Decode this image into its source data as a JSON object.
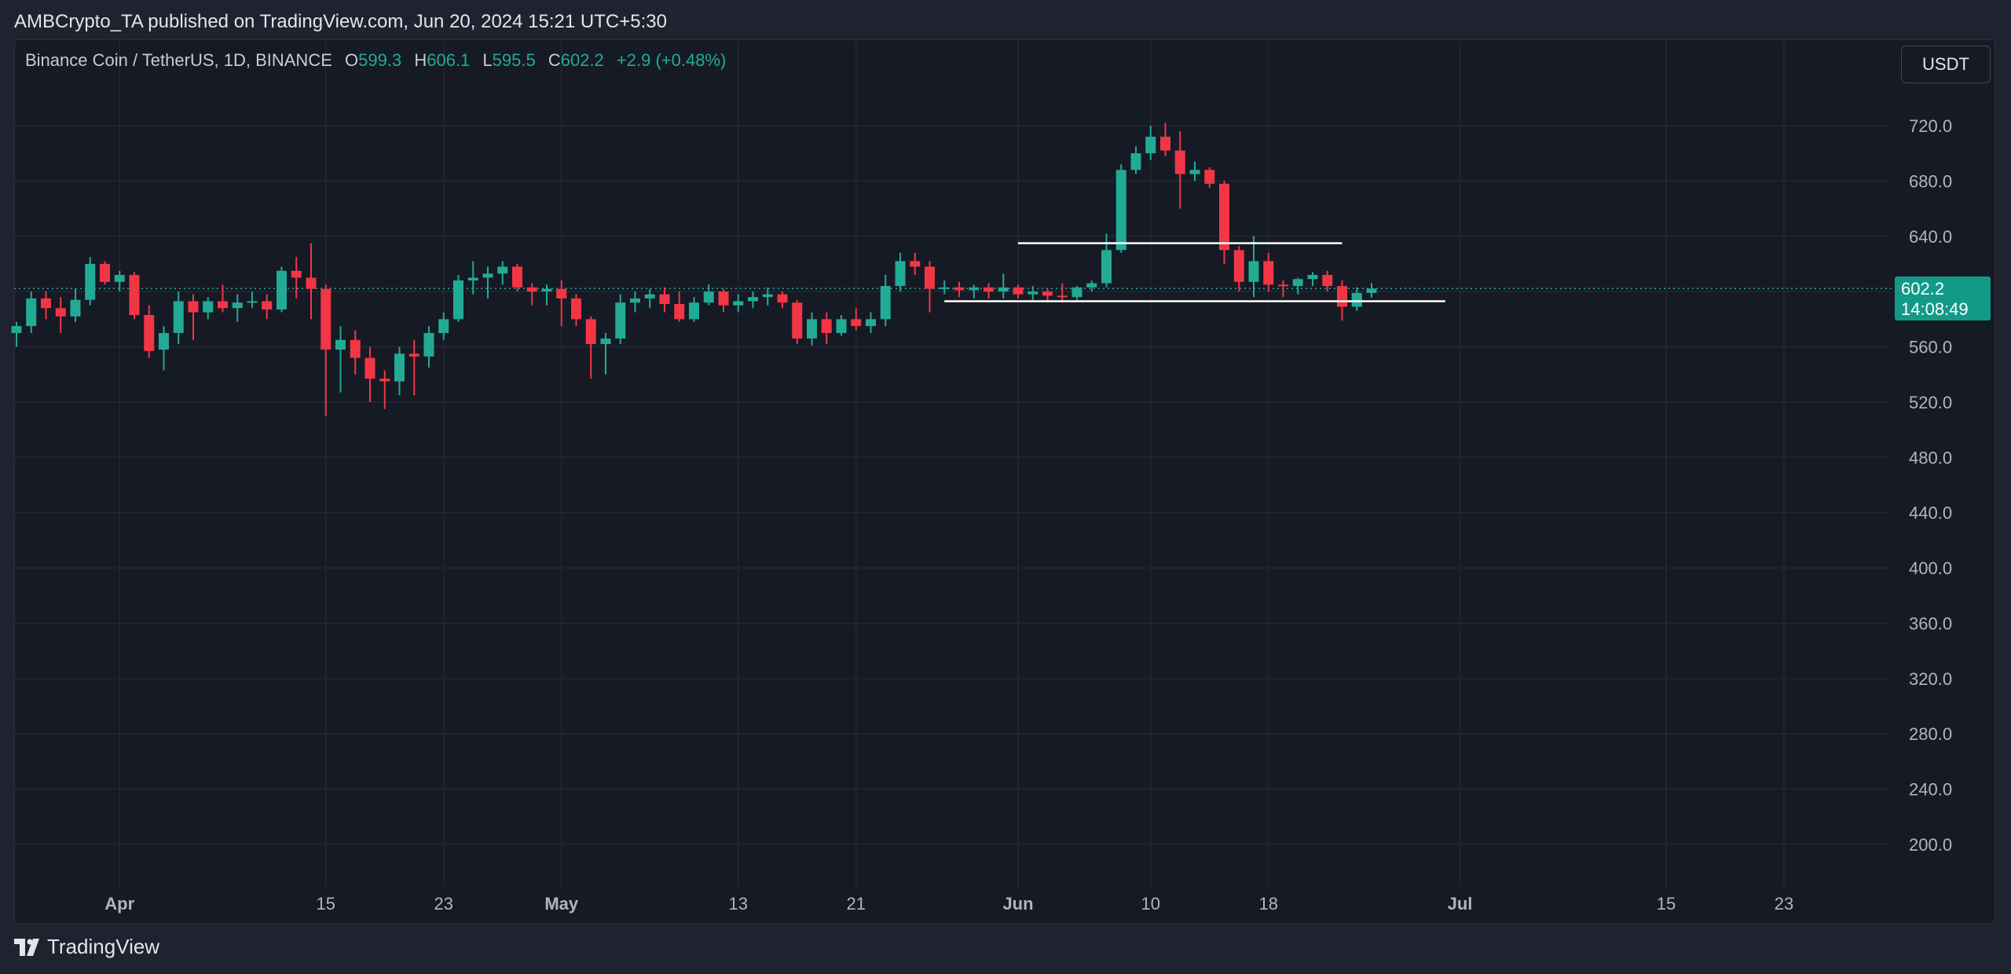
{
  "header": {
    "published": "AMBCrypto_TA published on TradingView.com, Jun 20, 2024 15:21 UTC+5:30"
  },
  "symbol": {
    "name": "Binance Coin / TetherUS, 1D, BINANCE",
    "o_label": "O",
    "o_value": "599.3",
    "h_label": "H",
    "h_value": "606.1",
    "l_label": "L",
    "l_value": "595.5",
    "c_label": "C",
    "c_value": "602.2",
    "change": "+2.9 (+0.48%)"
  },
  "currency_button": "USDT",
  "price_tag": {
    "price": "602.2",
    "countdown": "14:08:49"
  },
  "footer": {
    "brand": "TradingView"
  },
  "colors": {
    "up": "#22ab94",
    "down": "#f23645",
    "grid": "#232734",
    "background": "#161a25",
    "price_line": "#22ab94",
    "drawing": "#ffffff"
  },
  "chart_data": {
    "type": "candlestick",
    "title": "Binance Coin / TetherUS, 1D, BINANCE",
    "ylim": [
      170,
      760
    ],
    "y_ticks": [
      "200.0",
      "240.0",
      "280.0",
      "320.0",
      "360.0",
      "400.0",
      "440.0",
      "480.0",
      "520.0",
      "560.0",
      "600.0",
      "640.0",
      "680.0",
      "720.0"
    ],
    "x_ticks": [
      {
        "date": "2024-04-01",
        "label": "Apr"
      },
      {
        "date": "2024-04-15",
        "label": "15"
      },
      {
        "date": "2024-04-23",
        "label": "23"
      },
      {
        "date": "2024-05-01",
        "label": "May"
      },
      {
        "date": "2024-05-13",
        "label": "13"
      },
      {
        "date": "2024-05-21",
        "label": "21"
      },
      {
        "date": "2024-06-01",
        "label": "Jun"
      },
      {
        "date": "2024-06-10",
        "label": "10"
      },
      {
        "date": "2024-06-18",
        "label": "18"
      },
      {
        "date": "2024-07-01",
        "label": "Jul"
      },
      {
        "date": "2024-07-15",
        "label": "15"
      },
      {
        "date": "2024-07-23",
        "label": "23"
      }
    ],
    "x_range": [
      "2024-03-25",
      "2024-07-28"
    ],
    "last_price": 602.2,
    "candles": [
      {
        "d": "2024-03-25",
        "o": 570,
        "h": 578,
        "l": 560,
        "c": 575
      },
      {
        "d": "2024-03-26",
        "o": 575,
        "h": 600,
        "l": 570,
        "c": 595
      },
      {
        "d": "2024-03-27",
        "o": 595,
        "h": 600,
        "l": 580,
        "c": 588
      },
      {
        "d": "2024-03-28",
        "o": 588,
        "h": 596,
        "l": 570,
        "c": 582
      },
      {
        "d": "2024-03-29",
        "o": 582,
        "h": 602,
        "l": 578,
        "c": 594
      },
      {
        "d": "2024-03-30",
        "o": 594,
        "h": 625,
        "l": 590,
        "c": 620
      },
      {
        "d": "2024-03-31",
        "o": 620,
        "h": 622,
        "l": 605,
        "c": 607
      },
      {
        "d": "2024-04-01",
        "o": 607,
        "h": 615,
        "l": 600,
        "c": 612
      },
      {
        "d": "2024-04-02",
        "o": 612,
        "h": 614,
        "l": 580,
        "c": 583
      },
      {
        "d": "2024-04-03",
        "o": 583,
        "h": 590,
        "l": 552,
        "c": 557
      },
      {
        "d": "2024-04-04",
        "o": 558,
        "h": 575,
        "l": 543,
        "c": 570
      },
      {
        "d": "2024-04-05",
        "o": 570,
        "h": 600,
        "l": 562,
        "c": 593
      },
      {
        "d": "2024-04-06",
        "o": 593,
        "h": 598,
        "l": 565,
        "c": 585
      },
      {
        "d": "2024-04-07",
        "o": 585,
        "h": 596,
        "l": 580,
        "c": 593
      },
      {
        "d": "2024-04-08",
        "o": 593,
        "h": 605,
        "l": 585,
        "c": 588
      },
      {
        "d": "2024-04-09",
        "o": 588,
        "h": 598,
        "l": 578,
        "c": 592
      },
      {
        "d": "2024-04-10",
        "o": 592,
        "h": 600,
        "l": 588,
        "c": 593
      },
      {
        "d": "2024-04-11",
        "o": 593,
        "h": 598,
        "l": 580,
        "c": 587
      },
      {
        "d": "2024-04-12",
        "o": 587,
        "h": 618,
        "l": 585,
        "c": 615
      },
      {
        "d": "2024-04-13",
        "o": 615,
        "h": 625,
        "l": 595,
        "c": 610
      },
      {
        "d": "2024-04-14",
        "o": 610,
        "h": 635,
        "l": 580,
        "c": 602
      },
      {
        "d": "2024-04-15",
        "o": 602,
        "h": 605,
        "l": 510,
        "c": 558
      },
      {
        "d": "2024-04-16",
        "o": 558,
        "h": 575,
        "l": 527,
        "c": 565
      },
      {
        "d": "2024-04-17",
        "o": 565,
        "h": 572,
        "l": 540,
        "c": 552
      },
      {
        "d": "2024-04-18",
        "o": 552,
        "h": 560,
        "l": 520,
        "c": 537
      },
      {
        "d": "2024-04-19",
        "o": 537,
        "h": 543,
        "l": 515,
        "c": 535
      },
      {
        "d": "2024-04-20",
        "o": 535,
        "h": 560,
        "l": 525,
        "c": 555
      },
      {
        "d": "2024-04-21",
        "o": 555,
        "h": 565,
        "l": 525,
        "c": 553
      },
      {
        "d": "2024-04-22",
        "o": 553,
        "h": 575,
        "l": 545,
        "c": 570
      },
      {
        "d": "2024-04-23",
        "o": 570,
        "h": 585,
        "l": 565,
        "c": 580
      },
      {
        "d": "2024-04-24",
        "o": 580,
        "h": 612,
        "l": 578,
        "c": 608
      },
      {
        "d": "2024-04-25",
        "o": 608,
        "h": 622,
        "l": 598,
        "c": 610
      },
      {
        "d": "2024-04-26",
        "o": 610,
        "h": 618,
        "l": 595,
        "c": 613
      },
      {
        "d": "2024-04-27",
        "o": 613,
        "h": 622,
        "l": 605,
        "c": 618
      },
      {
        "d": "2024-04-28",
        "o": 618,
        "h": 620,
        "l": 600,
        "c": 603
      },
      {
        "d": "2024-04-29",
        "o": 603,
        "h": 606,
        "l": 590,
        "c": 600
      },
      {
        "d": "2024-04-30",
        "o": 600,
        "h": 605,
        "l": 590,
        "c": 602
      },
      {
        "d": "2024-05-01",
        "o": 602,
        "h": 608,
        "l": 575,
        "c": 595
      },
      {
        "d": "2024-05-02",
        "o": 595,
        "h": 598,
        "l": 575,
        "c": 580
      },
      {
        "d": "2024-05-03",
        "o": 580,
        "h": 582,
        "l": 537,
        "c": 562
      },
      {
        "d": "2024-05-04",
        "o": 562,
        "h": 570,
        "l": 540,
        "c": 566
      },
      {
        "d": "2024-05-05",
        "o": 566,
        "h": 598,
        "l": 562,
        "c": 592
      },
      {
        "d": "2024-05-06",
        "o": 592,
        "h": 600,
        "l": 585,
        "c": 595
      },
      {
        "d": "2024-05-07",
        "o": 595,
        "h": 602,
        "l": 588,
        "c": 598
      },
      {
        "d": "2024-05-08",
        "o": 598,
        "h": 603,
        "l": 585,
        "c": 591
      },
      {
        "d": "2024-05-09",
        "o": 591,
        "h": 600,
        "l": 578,
        "c": 580
      },
      {
        "d": "2024-05-10",
        "o": 580,
        "h": 596,
        "l": 578,
        "c": 592
      },
      {
        "d": "2024-05-11",
        "o": 592,
        "h": 605,
        "l": 590,
        "c": 600
      },
      {
        "d": "2024-05-12",
        "o": 600,
        "h": 602,
        "l": 585,
        "c": 590
      },
      {
        "d": "2024-05-13",
        "o": 590,
        "h": 598,
        "l": 585,
        "c": 593
      },
      {
        "d": "2024-05-14",
        "o": 593,
        "h": 600,
        "l": 588,
        "c": 596
      },
      {
        "d": "2024-05-15",
        "o": 596,
        "h": 603,
        "l": 590,
        "c": 598
      },
      {
        "d": "2024-05-16",
        "o": 598,
        "h": 600,
        "l": 588,
        "c": 592
      },
      {
        "d": "2024-05-17",
        "o": 592,
        "h": 594,
        "l": 562,
        "c": 566
      },
      {
        "d": "2024-05-18",
        "o": 566,
        "h": 585,
        "l": 561,
        "c": 580
      },
      {
        "d": "2024-05-19",
        "o": 580,
        "h": 585,
        "l": 562,
        "c": 570
      },
      {
        "d": "2024-05-20",
        "o": 570,
        "h": 583,
        "l": 568,
        "c": 580
      },
      {
        "d": "2024-05-21",
        "o": 580,
        "h": 588,
        "l": 572,
        "c": 575
      },
      {
        "d": "2024-05-22",
        "o": 575,
        "h": 585,
        "l": 570,
        "c": 580
      },
      {
        "d": "2024-05-23",
        "o": 580,
        "h": 612,
        "l": 575,
        "c": 604
      },
      {
        "d": "2024-05-24",
        "o": 604,
        "h": 628,
        "l": 600,
        "c": 622
      },
      {
        "d": "2024-05-25",
        "o": 622,
        "h": 628,
        "l": 612,
        "c": 618
      },
      {
        "d": "2024-05-26",
        "o": 618,
        "h": 622,
        "l": 585,
        "c": 602
      },
      {
        "d": "2024-05-27",
        "o": 602,
        "h": 608,
        "l": 598,
        "c": 603
      },
      {
        "d": "2024-05-28",
        "o": 603,
        "h": 607,
        "l": 596,
        "c": 601
      },
      {
        "d": "2024-05-29",
        "o": 601,
        "h": 605,
        "l": 595,
        "c": 603
      },
      {
        "d": "2024-05-30",
        "o": 603,
        "h": 606,
        "l": 595,
        "c": 600
      },
      {
        "d": "2024-05-31",
        "o": 600,
        "h": 613,
        "l": 595,
        "c": 603
      },
      {
        "d": "2024-06-01",
        "o": 603,
        "h": 605,
        "l": 595,
        "c": 598
      },
      {
        "d": "2024-06-02",
        "o": 598,
        "h": 604,
        "l": 594,
        "c": 600
      },
      {
        "d": "2024-06-03",
        "o": 600,
        "h": 602,
        "l": 592,
        "c": 597
      },
      {
        "d": "2024-06-04",
        "o": 597,
        "h": 606,
        "l": 592,
        "c": 596
      },
      {
        "d": "2024-06-05",
        "o": 596,
        "h": 604,
        "l": 594,
        "c": 603
      },
      {
        "d": "2024-06-06",
        "o": 603,
        "h": 608,
        "l": 600,
        "c": 606
      },
      {
        "d": "2024-06-07",
        "o": 606,
        "h": 642,
        "l": 603,
        "c": 630
      },
      {
        "d": "2024-06-08",
        "o": 630,
        "h": 692,
        "l": 628,
        "c": 688
      },
      {
        "d": "2024-06-09",
        "o": 688,
        "h": 705,
        "l": 685,
        "c": 700
      },
      {
        "d": "2024-06-10",
        "o": 700,
        "h": 720,
        "l": 695,
        "c": 712
      },
      {
        "d": "2024-06-11",
        "o": 712,
        "h": 722,
        "l": 698,
        "c": 702
      },
      {
        "d": "2024-06-12",
        "o": 702,
        "h": 716,
        "l": 660,
        "c": 685
      },
      {
        "d": "2024-06-13",
        "o": 685,
        "h": 694,
        "l": 680,
        "c": 688
      },
      {
        "d": "2024-06-14",
        "o": 688,
        "h": 690,
        "l": 675,
        "c": 678
      },
      {
        "d": "2024-06-15",
        "o": 678,
        "h": 680,
        "l": 620,
        "c": 630
      },
      {
        "d": "2024-06-16",
        "o": 630,
        "h": 633,
        "l": 600,
        "c": 607
      },
      {
        "d": "2024-06-17",
        "o": 607,
        "h": 640,
        "l": 596,
        "c": 622
      },
      {
        "d": "2024-06-18",
        "o": 622,
        "h": 628,
        "l": 600,
        "c": 605
      },
      {
        "d": "2024-06-19",
        "o": 605,
        "h": 608,
        "l": 596,
        "c": 604
      },
      {
        "d": "2024-06-20",
        "o": 604,
        "h": 610,
        "l": 598,
        "c": 609
      },
      {
        "d": "2024-06-21",
        "o": 609,
        "h": 614,
        "l": 604,
        "c": 612
      },
      {
        "d": "2024-06-22",
        "o": 612,
        "h": 615,
        "l": 600,
        "c": 604
      },
      {
        "d": "2024-06-23",
        "o": 604,
        "h": 608,
        "l": 579,
        "c": 589
      },
      {
        "d": "2024-06-24",
        "o": 589,
        "h": 603,
        "l": 586,
        "c": 599
      },
      {
        "d": "2024-06-25",
        "o": 599,
        "h": 606.1,
        "l": 595.5,
        "c": 602.2
      }
    ],
    "drawings": [
      {
        "type": "hline",
        "from": "2024-06-01",
        "to": "2024-06-23",
        "price": 635
      },
      {
        "type": "hline",
        "from": "2024-05-27",
        "to": "2024-06-30",
        "price": 593
      }
    ]
  }
}
